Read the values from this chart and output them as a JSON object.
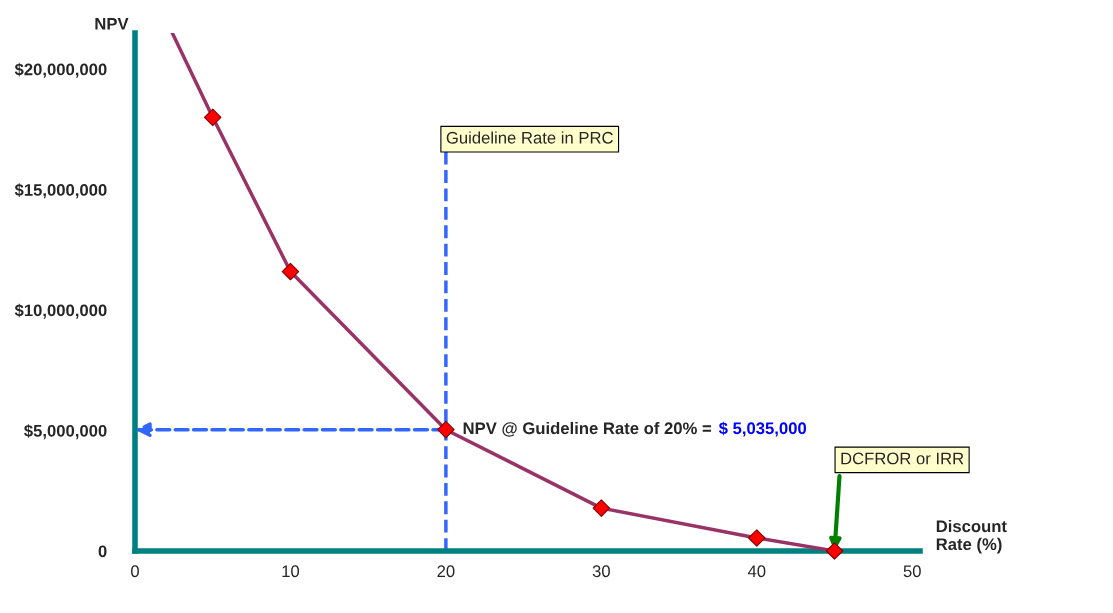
{
  "chart_data": {
    "type": "line",
    "ylabel": "NPV",
    "xlabel": "Discount\nRate (%)",
    "series": [
      {
        "color": "#993366",
        "marker": "none",
        "x": [
          2.4,
          5,
          10,
          20,
          30,
          40,
          45
        ],
        "values": [
          21500000,
          18000000,
          11600000,
          5035000,
          1780000,
          540000,
          0
        ]
      },
      {
        "type": "scatter",
        "color": "#ff0000",
        "marker": "diamond",
        "x": [
          5,
          10,
          20,
          30,
          40,
          45
        ],
        "values": [
          18000000,
          11600000,
          5035000,
          1780000,
          540000,
          0
        ]
      }
    ],
    "xlim": [
      0,
      50.5
    ],
    "ylim": [
      0,
      21500000
    ],
    "xticks": [
      0,
      10,
      20,
      30,
      40,
      50
    ],
    "yticks": [
      {
        "value": 0,
        "label": "0"
      },
      {
        "value": 5000000,
        "label": "$5,000,000"
      },
      {
        "value": 10000000,
        "label": "$10,000,000"
      },
      {
        "value": 15000000,
        "label": "$15,000,000"
      },
      {
        "value": 20000000,
        "label": "$20,000,000"
      }
    ],
    "ref_lines": [
      {
        "axis": "x",
        "value": 20,
        "label": "Guideline Rate in PRC",
        "color": "#3366ff",
        "line_style": "dashed"
      }
    ],
    "annotations": [
      {
        "text": "NPV @ Guideline Rate of 20% =",
        "x": 20,
        "y": 5035000
      },
      "$ 5,035,000",
      {
        "text": "DCFROR or IRR",
        "x": 45,
        "y": 0
      }
    ],
    "grid": false,
    "legend": false
  }
}
